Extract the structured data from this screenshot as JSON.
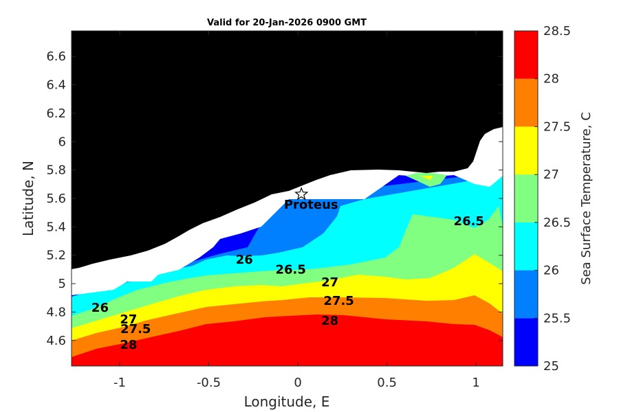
{
  "chart_data": {
    "type": "heatmap",
    "title": "Valid for 20-Jan-2026 0900 GMT",
    "xlabel": "Longitude, E",
    "ylabel": "Latitude, N",
    "xlim": [
      -1.27,
      1.15
    ],
    "ylim": [
      4.42,
      6.78
    ],
    "xticks": [
      -1,
      -0.5,
      0,
      0.5,
      1
    ],
    "xtick_labels": [
      "-1",
      "-0.5",
      "0",
      "0.5",
      "1"
    ],
    "yticks": [
      4.6,
      4.8,
      5,
      5.2,
      5.4,
      5.6,
      5.8,
      6,
      6.2,
      6.4,
      6.6
    ],
    "ytick_labels": [
      "4.6",
      "4.8",
      "5",
      "5.2",
      "5.4",
      "5.6",
      "5.8",
      "6",
      "6.2",
      "6.4",
      "6.6"
    ],
    "colorbar": {
      "label": "Sea Surface Temperature, C",
      "min": 25,
      "max": 28.5,
      "ticks": [
        25,
        25.5,
        26,
        26.5,
        27,
        27.5,
        28,
        28.5
      ],
      "tick_labels": [
        "25",
        "25.5",
        "26",
        "26.5",
        "27",
        "27.5",
        "28",
        "28.5"
      ],
      "levels": [
        {
          "from": 25.0,
          "to": 25.5,
          "color": "#0000ff"
        },
        {
          "from": 25.5,
          "to": 26.0,
          "color": "#0080ff"
        },
        {
          "from": 26.0,
          "to": 26.5,
          "color": "#00ffff"
        },
        {
          "from": 26.5,
          "to": 27.0,
          "color": "#80ff80"
        },
        {
          "from": 27.0,
          "to": 27.5,
          "color": "#ffff00"
        },
        {
          "from": 27.5,
          "to": 28.0,
          "color": "#ff8000"
        },
        {
          "from": 28.0,
          "to": 28.5,
          "color": "#ff0000"
        }
      ]
    },
    "contour_labels": [
      {
        "text": "26",
        "lon": -1.11,
        "lat": 4.83
      },
      {
        "text": "27",
        "lon": -0.95,
        "lat": 4.75
      },
      {
        "text": "27.5",
        "lon": -0.91,
        "lat": 4.68
      },
      {
        "text": "28",
        "lon": -0.95,
        "lat": 4.57
      },
      {
        "text": "26",
        "lon": -0.3,
        "lat": 5.17
      },
      {
        "text": "26.5",
        "lon": -0.04,
        "lat": 5.1
      },
      {
        "text": "27",
        "lon": 0.18,
        "lat": 5.01
      },
      {
        "text": "27.5",
        "lon": 0.23,
        "lat": 4.88
      },
      {
        "text": "28",
        "lon": 0.18,
        "lat": 4.74
      },
      {
        "text": "26.5",
        "lon": 0.96,
        "lat": 5.44
      }
    ],
    "station": {
      "name": "Proteus",
      "lon": 0.02,
      "lat": 5.63
    },
    "land_color": "#000000",
    "nodata_color": "#ffffff"
  }
}
